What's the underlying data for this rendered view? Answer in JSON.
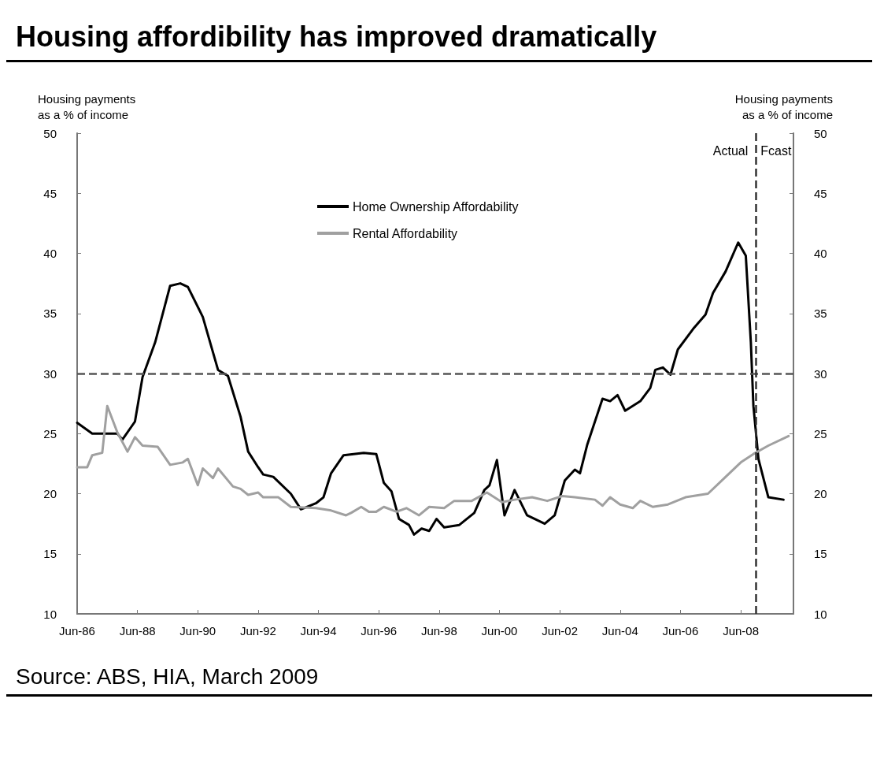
{
  "chart_data": {
    "type": "line",
    "title": "Housing affordibility has improved dramatically",
    "ylabel": "Housing payments\nas a % of income",
    "y2label": "Housing payments\nas a % of income",
    "series": [
      {
        "name": "Home Ownership Affordability",
        "color": "#000000",
        "x": [
          "1986-06",
          "1986-12",
          "1987-10",
          "1987-12",
          "1988-05",
          "1988-08",
          "1989-01",
          "1989-07",
          "1989-11",
          "1990-02",
          "1990-08",
          "1991-02",
          "1991-06",
          "1991-11",
          "1992-02",
          "1992-06",
          "1992-08",
          "1992-12",
          "1993-07",
          "1993-11",
          "1994-05",
          "1994-08",
          "1994-11",
          "1995-04",
          "1995-12",
          "1996-05",
          "1996-08",
          "1996-11",
          "1997-02",
          "1997-06",
          "1997-08",
          "1997-11",
          "1998-02",
          "1998-05",
          "1998-08",
          "1999-02",
          "1999-08",
          "1999-12",
          "2000-02",
          "2000-05",
          "2000-08",
          "2000-12",
          "2001-05",
          "2001-12",
          "2002-04",
          "2002-08",
          "2002-12",
          "2003-02",
          "2003-05",
          "2003-11",
          "2004-02",
          "2004-05",
          "2004-08",
          "2005-02",
          "2005-06",
          "2005-08",
          "2005-11",
          "2006-02",
          "2006-05",
          "2006-11",
          "2007-04",
          "2007-07",
          "2007-12",
          "2008-05",
          "2008-08",
          "2008-10",
          "2008-11",
          "2009-01",
          "2009-05",
          "2009-11"
        ],
        "values": [
          25.9,
          25.0,
          25.0,
          24.5,
          26.0,
          29.7,
          32.6,
          37.3,
          37.5,
          37.2,
          34.7,
          30.3,
          29.8,
          26.4,
          23.5,
          22.2,
          21.6,
          21.4,
          20.0,
          18.7,
          19.2,
          19.7,
          21.7,
          23.2,
          23.4,
          23.3,
          20.9,
          20.2,
          17.9,
          17.4,
          16.6,
          17.1,
          16.9,
          17.9,
          17.2,
          17.4,
          18.4,
          20.3,
          20.7,
          22.8,
          18.2,
          20.3,
          18.2,
          17.5,
          18.2,
          21.1,
          22.0,
          21.7,
          24.1,
          27.9,
          27.7,
          28.2,
          26.9,
          27.7,
          28.8,
          30.3,
          30.5,
          29.9,
          32.0,
          33.7,
          34.9,
          36.7,
          38.5,
          40.9,
          39.8,
          32.6,
          27.3,
          22.9,
          19.7,
          19.5
        ]
      },
      {
        "name": "Rental Affordability",
        "color": "#a0a0a0",
        "x": [
          "1986-06",
          "1986-10",
          "1986-12",
          "1987-04",
          "1987-06",
          "1987-10",
          "1988-02",
          "1988-05",
          "1988-08",
          "1989-02",
          "1989-07",
          "1989-12",
          "1990-02",
          "1990-06",
          "1990-08",
          "1990-12",
          "1991-02",
          "1991-08",
          "1991-11",
          "1992-02",
          "1992-06",
          "1992-08",
          "1993-02",
          "1993-07",
          "1994-05",
          "1994-11",
          "1995-05",
          "1995-07",
          "1995-11",
          "1996-02",
          "1996-05",
          "1996-08",
          "1997-01",
          "1997-05",
          "1997-10",
          "1998-02",
          "1998-08",
          "1998-12",
          "1999-07",
          "2000-01",
          "2000-07",
          "2000-12",
          "2001-07",
          "2002-01",
          "2002-07",
          "2002-12",
          "2003-08",
          "2003-11",
          "2004-02",
          "2004-06",
          "2004-11",
          "2005-02",
          "2005-07",
          "2006-01",
          "2006-08",
          "2007-05",
          "2007-12",
          "2008-06",
          "2008-11",
          "2009-05",
          "2010-01"
        ],
        "values": [
          22.2,
          22.2,
          23.2,
          23.4,
          27.3,
          25.1,
          23.5,
          24.7,
          24.0,
          23.9,
          22.4,
          22.6,
          22.9,
          20.7,
          22.1,
          21.3,
          22.1,
          20.6,
          20.4,
          19.9,
          20.1,
          19.7,
          19.7,
          18.9,
          18.8,
          18.6,
          18.2,
          18.4,
          18.9,
          18.5,
          18.5,
          18.9,
          18.5,
          18.8,
          18.2,
          18.9,
          18.8,
          19.4,
          19.4,
          20.1,
          19.3,
          19.5,
          19.7,
          19.4,
          19.8,
          19.7,
          19.5,
          19.0,
          19.7,
          19.1,
          18.8,
          19.4,
          18.9,
          19.1,
          19.7,
          20.0,
          21.4,
          22.6,
          23.3,
          24.0,
          24.8
        ]
      }
    ],
    "xlim": [
      "1986-06",
      "2010-03"
    ],
    "xticks": [
      {
        "value": "1986-06",
        "label": "Jun-86"
      },
      {
        "value": "1988-06",
        "label": "Jun-88"
      },
      {
        "value": "1990-06",
        "label": "Jun-90"
      },
      {
        "value": "1992-06",
        "label": "Jun-92"
      },
      {
        "value": "1994-06",
        "label": "Jun-94"
      },
      {
        "value": "1996-06",
        "label": "Jun-96"
      },
      {
        "value": "1998-06",
        "label": "Jun-98"
      },
      {
        "value": "2000-06",
        "label": "Jun-00"
      },
      {
        "value": "2002-06",
        "label": "Jun-02"
      },
      {
        "value": "2004-06",
        "label": "Jun-04"
      },
      {
        "value": "2006-06",
        "label": "Jun-06"
      },
      {
        "value": "2008-06",
        "label": "Jun-08"
      }
    ],
    "ylim": [
      10,
      50
    ],
    "yticks": [
      10,
      15,
      20,
      25,
      30,
      35,
      40,
      45,
      50
    ],
    "y2lim": [
      10,
      50
    ],
    "y2ticks": [
      10,
      15,
      20,
      25,
      30,
      35,
      40,
      45,
      50
    ],
    "ref_lines": [
      {
        "axis": "y",
        "value": 30,
        "color": "#555555",
        "line_style": "dashed"
      },
      {
        "axis": "x",
        "value": "2008-12",
        "color": "#333333",
        "line_style": "dashed"
      }
    ],
    "annotations": [
      "Actual",
      "Fcast",
      "Source: ABS, HIA, March 2009"
    ],
    "legend": "top",
    "grid": false,
    "marker": "none",
    "line_style": "solid"
  }
}
